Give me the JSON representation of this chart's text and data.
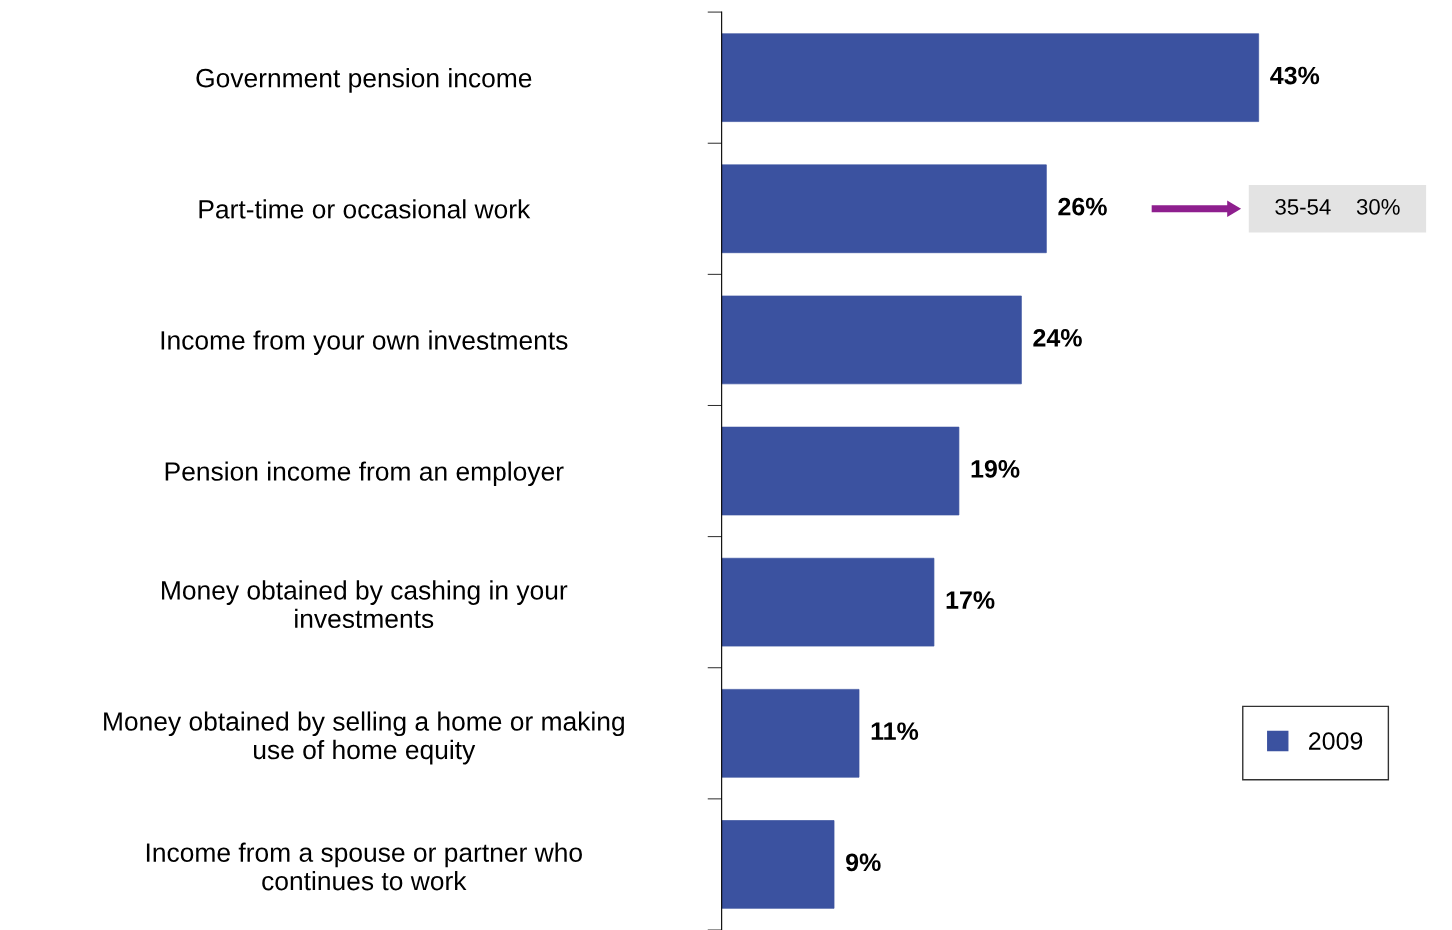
{
  "chart_data": {
    "type": "bar",
    "orientation": "horizontal",
    "categories": [
      "Government pension income",
      "Part-time or occasional work",
      "Income from your own investments",
      "Pension income from an employer",
      "Money obtained by cashing in your\ninvestments",
      "Money obtained by selling a home or making\nuse of home equity",
      "Income from a spouse or partner who\ncontinues to work"
    ],
    "series": [
      {
        "name": "2009",
        "color": "#3b52a0",
        "values": [
          43,
          26,
          24,
          19,
          17,
          11,
          9
        ],
        "value_labels": [
          "43%",
          "26%",
          "24%",
          "19%",
          "17%",
          "11%",
          "9%"
        ]
      }
    ],
    "legend": "bottom right",
    "grid": false,
    "tick_labels": "y",
    "annotations": [
      "35-54    30%"
    ]
  }
}
